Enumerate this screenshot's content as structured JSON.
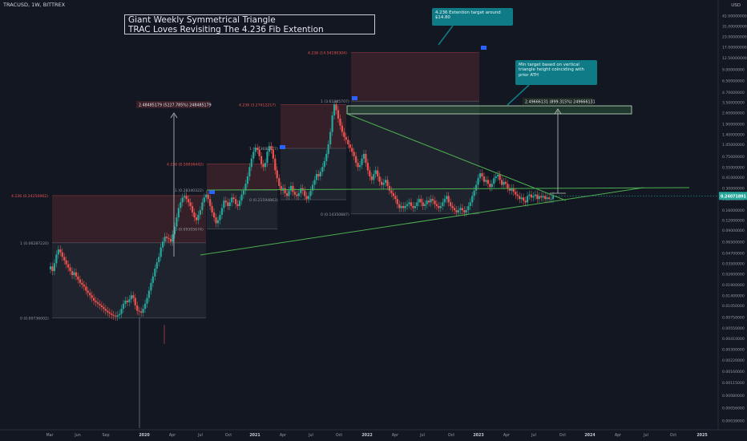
{
  "header": {
    "symbol": "TRACUSD, 1W, BITTREX",
    "price_unit": "USD"
  },
  "title": {
    "line1": "Giant Weekly Symmetrical Triangle",
    "line2": "TRAC Loves Revisiting The 4.236 Fib Extention"
  },
  "callouts": {
    "extension": "4.236 Extention target around $14.80",
    "min_target": "Min target based on vertical triangle height coinciding with prior ATH"
  },
  "measure_labels": {
    "left": "2.48485179 (5227.785%) 248485179",
    "right": "2.49666131 (899.315%) 249666131"
  },
  "colors": {
    "background": "#131722",
    "up": "#26a69a",
    "down": "#ef5350",
    "trendline": "#4caf50",
    "fib_zone": "#ef5350",
    "target_zone": "#4caf50",
    "callout": "#0f7b86",
    "current_price": "#26a69a"
  },
  "chart_data": {
    "type": "candlestick",
    "y_scale": "log",
    "x_ticks": [
      "Mar",
      "Jun",
      "Sep",
      "2020",
      "Apr",
      "Jul",
      "Oct",
      "2021",
      "Apr",
      "Jul",
      "Oct",
      "2022",
      "Apr",
      "Jul",
      "Oct",
      "2023",
      "Apr",
      "Jul",
      "Oct",
      "2024",
      "Apr",
      "Jul",
      "Oct",
      "2025"
    ],
    "y_ticks": [
      "42.00000000",
      "31.00000000",
      "23.00000000",
      "17.00000000",
      "12.50000000",
      "9.00000000",
      "6.50000000",
      "4.70000000",
      "3.50000000",
      "2.60000000",
      "1.90000000",
      "1.40000000",
      "1.05000000",
      "0.75000000",
      "0.55000000",
      "0.41000000",
      "0.30000000",
      "0.22000000",
      "0.16000000",
      "0.12000000",
      "0.09000000",
      "0.06500000",
      "0.04700000",
      "0.03500000",
      "0.02600000",
      "0.01900000",
      "0.01400000",
      "0.01050000",
      "0.00750000",
      "0.00550000",
      "0.00410000",
      "0.00300000",
      "0.00220000",
      "0.00160000",
      "0.00115000",
      "0.00080000",
      "0.00056000",
      "0.00039000"
    ],
    "current_price_label": "0.24071891",
    "current_price": 0.2407,
    "fib_labels": [
      {
        "text": "4.236 (0.24250962)",
        "price": 0.2425,
        "color": "red"
      },
      {
        "text": "1 (0.06287220)",
        "price": 0.06287,
        "color": "gray"
      },
      {
        "text": "0 (0.00736002)",
        "price": 0.00736,
        "color": "gray"
      },
      {
        "text": "4.236 (0.59936442)",
        "price": 0.5994,
        "color": "red"
      },
      {
        "text": "1 (0.28340322)",
        "price": 0.2834,
        "color": "gray"
      },
      {
        "text": "0 (0.09305674)",
        "price": 0.09306,
        "color": "gray"
      },
      {
        "text": "4.236 (3.27412217)",
        "price": 3.274,
        "color": "red"
      },
      {
        "text": "1 (0.93682527)",
        "price": 0.9368,
        "color": "gray"
      },
      {
        "text": "0 (0.21594863)",
        "price": 0.2159,
        "color": "gray"
      },
      {
        "text": "4.236 (14.54190304)",
        "price": 14.54,
        "color": "red"
      },
      {
        "text": "1 (3.61385707)",
        "price": 3.614,
        "color": "gray"
      },
      {
        "text": "0 (0.14350887)",
        "price": 0.1435,
        "color": "gray"
      }
    ],
    "closes": [
      0.032,
      0.028,
      0.035,
      0.045,
      0.052,
      0.048,
      0.042,
      0.038,
      0.034,
      0.031,
      0.028,
      0.025,
      0.027,
      0.024,
      0.022,
      0.02,
      0.019,
      0.018,
      0.016,
      0.015,
      0.014,
      0.013,
      0.012,
      0.0115,
      0.011,
      0.0105,
      0.01,
      0.0095,
      0.009,
      0.0086,
      0.0083,
      0.008,
      0.0078,
      0.0076,
      0.0079,
      0.0082,
      0.0095,
      0.011,
      0.012,
      0.0115,
      0.0125,
      0.014,
      0.013,
      0.0105,
      0.009,
      0.0088,
      0.0085,
      0.0095,
      0.011,
      0.013,
      0.016,
      0.02,
      0.024,
      0.03,
      0.036,
      0.042,
      0.055,
      0.065,
      0.075,
      0.072,
      0.07,
      0.065,
      0.08,
      0.1,
      0.13,
      0.17,
      0.2,
      0.23,
      0.24,
      0.22,
      0.2,
      0.18,
      0.15,
      0.13,
      0.12,
      0.14,
      0.16,
      0.2,
      0.23,
      0.25,
      0.22,
      0.18,
      0.15,
      0.13,
      0.11,
      0.12,
      0.14,
      0.17,
      0.21,
      0.2,
      0.18,
      0.2,
      0.23,
      0.22,
      0.19,
      0.18,
      0.21,
      0.25,
      0.28,
      0.34,
      0.42,
      0.55,
      0.7,
      0.85,
      0.95,
      0.9,
      0.75,
      0.6,
      0.55,
      0.62,
      0.85,
      1.0,
      0.9,
      0.7,
      0.5,
      0.4,
      0.32,
      0.28,
      0.3,
      0.26,
      0.24,
      0.28,
      0.32,
      0.27,
      0.25,
      0.24,
      0.26,
      0.3,
      0.28,
      0.24,
      0.22,
      0.24,
      0.28,
      0.33,
      0.38,
      0.45,
      0.42,
      0.48,
      0.55,
      0.65,
      0.8,
      1.05,
      1.5,
      2.4,
      3.3,
      2.8,
      2.2,
      1.8,
      1.5,
      1.3,
      1.2,
      1.05,
      0.95,
      0.85,
      0.75,
      0.62,
      0.55,
      0.58,
      0.7,
      0.8,
      0.62,
      0.5,
      0.42,
      0.38,
      0.45,
      0.5,
      0.42,
      0.36,
      0.33,
      0.35,
      0.38,
      0.32,
      0.28,
      0.26,
      0.24,
      0.22,
      0.19,
      0.17,
      0.18,
      0.17,
      0.18,
      0.19,
      0.2,
      0.18,
      0.17,
      0.18,
      0.2,
      0.22,
      0.2,
      0.18,
      0.19,
      0.21,
      0.2,
      0.22,
      0.21,
      0.19,
      0.18,
      0.17,
      0.18,
      0.2,
      0.22,
      0.24,
      0.2,
      0.18,
      0.17,
      0.16,
      0.15,
      0.16,
      0.17,
      0.16,
      0.15,
      0.16,
      0.18,
      0.2,
      0.24,
      0.28,
      0.33,
      0.4,
      0.46,
      0.42,
      0.36,
      0.38,
      0.34,
      0.31,
      0.34,
      0.4,
      0.42,
      0.44,
      0.38,
      0.33,
      0.36,
      0.34,
      0.3,
      0.28,
      0.3,
      0.27,
      0.25,
      0.24,
      0.22,
      0.23,
      0.21,
      0.2,
      0.24,
      0.25,
      0.23,
      0.24,
      0.25,
      0.22,
      0.24,
      0.23,
      0.24,
      0.22,
      0.23,
      0.22,
      0.22,
      0.24
    ]
  }
}
